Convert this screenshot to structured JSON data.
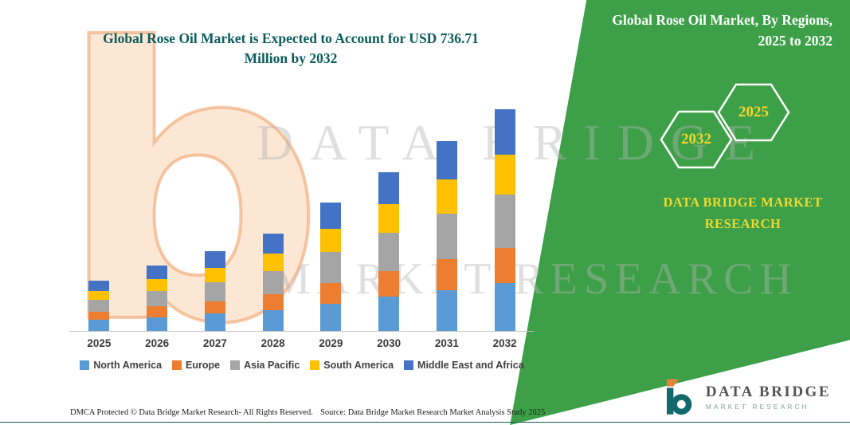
{
  "left_panel": {
    "title_line1": "Global Rose Oil Market is Expected to Account for USD 736.71",
    "title_line2": "Million by 2032"
  },
  "right_panel": {
    "title_line1": "Global Rose Oil Market, By Regions,",
    "title_line2": "2025 to 2032",
    "hexagon_years": {
      "back": "2032",
      "front": "2025"
    },
    "brand_line1": "DATA BRIDGE MARKET",
    "brand_line2": "RESEARCH",
    "background_color": "#3da048",
    "accent_yellow": "#efd92e",
    "title_teal": "#0b5c5c"
  },
  "watermark": {
    "line1": "DATA BRIDGE",
    "line2": "MARKET RESEARCH",
    "logo_glyph": "b"
  },
  "chart_data": {
    "type": "bar",
    "stacked": true,
    "title": "Global Rose Oil Market is Expected to Account for USD 736.71 Million by 2032",
    "unit": "USD Million",
    "categories": [
      "2025",
      "2026",
      "2027",
      "2028",
      "2029",
      "2030",
      "2031",
      "2032"
    ],
    "series": [
      {
        "name": "North America",
        "color": "#5B9BD5",
        "values": [
          36,
          46,
          57,
          69,
          91,
          114,
          136,
          158
        ]
      },
      {
        "name": "Europe",
        "color": "#ED7D31",
        "values": [
          27,
          35,
          42,
          52,
          68,
          85,
          101,
          118
        ]
      },
      {
        "name": "Asia Pacific",
        "color": "#A5A5A5",
        "values": [
          40,
          52,
          63,
          77,
          102,
          127,
          151,
          177
        ]
      },
      {
        "name": "South America",
        "color": "#FFC000",
        "values": [
          30,
          39,
          48,
          58,
          77,
          95,
          114,
          132
        ]
      },
      {
        "name": "Middle East and Africa",
        "color": "#4472C4",
        "values": [
          33,
          44,
          54,
          66,
          87,
          107,
          129,
          151.71
        ]
      }
    ],
    "totals_estimated": [
      166,
      216,
      264,
      322,
      425,
      528,
      631,
      736.71
    ],
    "ylim": [
      0,
      770
    ],
    "gridlines": false,
    "legend_position": "bottom"
  },
  "footer": {
    "dmca": "DMCA Protected © Data Bridge Market Research-  All Rights Reserved.",
    "source": "Source: Data Bridge Market Research  Market Analysis Study 2025"
  },
  "logo": {
    "name": "DATA BRIDGE",
    "subtitle": "MARKET RESEARCH"
  }
}
